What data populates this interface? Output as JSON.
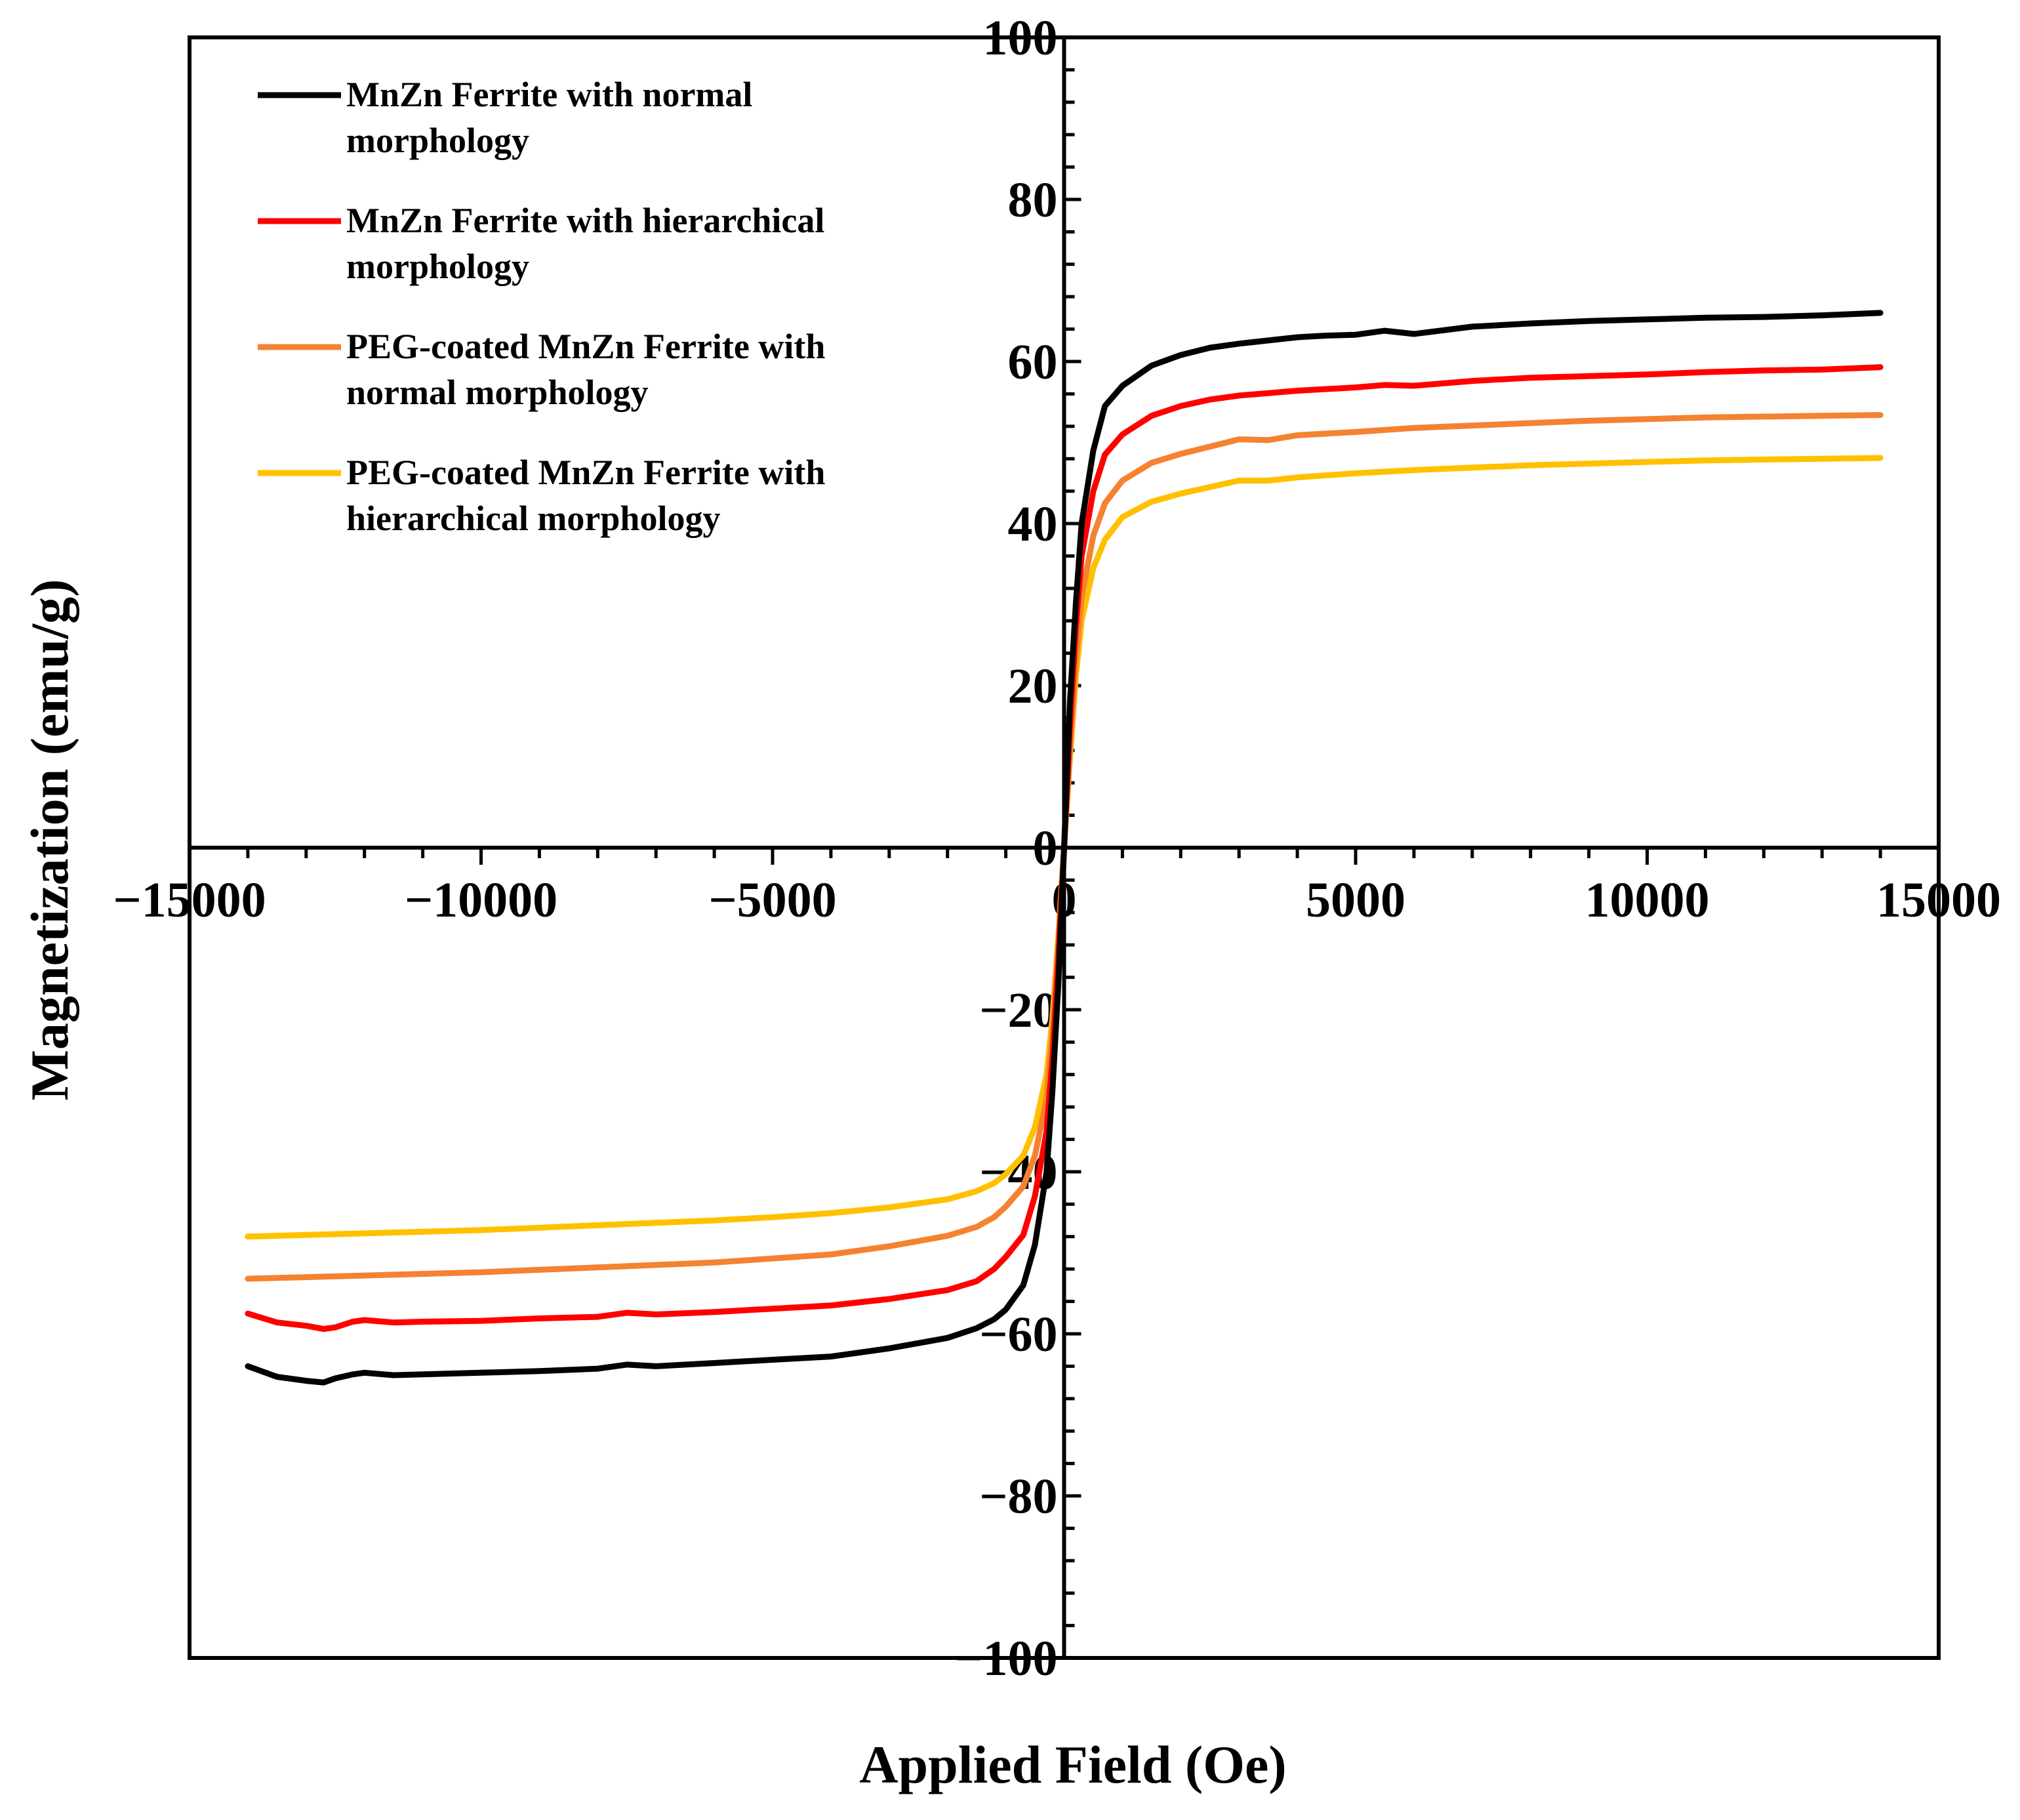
{
  "chart_data": {
    "type": "line",
    "title": "",
    "xlabel": "Applied Field (Oe)",
    "ylabel": "Magnetization (emu/g)",
    "xlim": [
      -15000,
      15000
    ],
    "ylim": [
      -100,
      100
    ],
    "x_ticks": [
      {
        "value": -15000,
        "label": "−15000"
      },
      {
        "value": -10000,
        "label": "−10000"
      },
      {
        "value": -5000,
        "label": "−5000"
      },
      {
        "value": 0,
        "label": "0"
      },
      {
        "value": 5000,
        "label": "5000"
      },
      {
        "value": 10000,
        "label": "10000"
      },
      {
        "value": 15000,
        "label": "15000"
      }
    ],
    "y_ticks": [
      {
        "value": 100,
        "label": "100"
      },
      {
        "value": 80,
        "label": "80"
      },
      {
        "value": 60,
        "label": "60"
      },
      {
        "value": 40,
        "label": "40"
      },
      {
        "value": 20,
        "label": "20"
      },
      {
        "value": 0,
        "label": "0"
      },
      {
        "value": -20,
        "label": "−20"
      },
      {
        "value": -40,
        "label": "−40"
      },
      {
        "value": -60,
        "label": "−60"
      },
      {
        "value": -80,
        "label": "−80"
      },
      {
        "value": -100,
        "label": "−100"
      }
    ],
    "grid": false,
    "legend_position": "top-left",
    "series": [
      {
        "name": "MnZn Ferrite with normal morphology",
        "legend_lines": [
          "MnZn Ferrite with normal",
          "morphology"
        ],
        "color": "#000000",
        "x": [
          -14000,
          -13500,
          -13000,
          -12700,
          -12500,
          -12200,
          -12000,
          -11500,
          -11000,
          -10000,
          -9000,
          -8000,
          -7500,
          -7000,
          -6000,
          -5000,
          -4000,
          -3000,
          -2000,
          -1500,
          -1200,
          -1000,
          -700,
          -500,
          -300,
          -200,
          -100,
          0,
          100,
          200,
          300,
          500,
          700,
          1000,
          1500,
          2000,
          2500,
          3000,
          4000,
          4500,
          5000,
          5500,
          6000,
          7000,
          8000,
          9000,
          10000,
          11000,
          12000,
          13000,
          14000
        ],
        "y": [
          -64.0,
          -65.3,
          -65.8,
          -66.0,
          -65.5,
          -65.0,
          -64.8,
          -65.1,
          -65.0,
          -64.8,
          -64.6,
          -64.3,
          -63.8,
          -64.0,
          -63.6,
          -63.2,
          -62.8,
          -61.8,
          -60.5,
          -59.3,
          -58.2,
          -57.0,
          -54.0,
          -49.0,
          -40.0,
          -30.0,
          -17.0,
          0.0,
          18.0,
          30.0,
          40.0,
          49.0,
          54.5,
          57.0,
          59.5,
          60.8,
          61.7,
          62.2,
          63.0,
          63.2,
          63.3,
          63.8,
          63.4,
          64.3,
          64.7,
          65.0,
          65.2,
          65.4,
          65.5,
          65.7,
          66.0
        ]
      },
      {
        "name": "MnZn Ferrite with hierarchical morphology",
        "legend_lines": [
          "MnZn Ferrite with hierarchical",
          "morphology"
        ],
        "color": "#ff0000",
        "x": [
          -14000,
          -13500,
          -13000,
          -12700,
          -12500,
          -12200,
          -12000,
          -11500,
          -11000,
          -10000,
          -9000,
          -8000,
          -7500,
          -7000,
          -6000,
          -5000,
          -4000,
          -3000,
          -2000,
          -1500,
          -1200,
          -1000,
          -700,
          -500,
          -300,
          -200,
          -100,
          0,
          100,
          200,
          300,
          500,
          700,
          1000,
          1500,
          2000,
          2500,
          3000,
          4000,
          5000,
          5500,
          6000,
          7000,
          8000,
          9000,
          10000,
          11000,
          12000,
          13000,
          14000
        ],
        "y": [
          -57.5,
          -58.6,
          -59.0,
          -59.4,
          -59.2,
          -58.5,
          -58.3,
          -58.6,
          -58.5,
          -58.4,
          -58.1,
          -57.9,
          -57.4,
          -57.6,
          -57.3,
          -56.9,
          -56.5,
          -55.7,
          -54.6,
          -53.5,
          -52.0,
          -50.5,
          -47.8,
          -43.0,
          -35.0,
          -26.0,
          -14.0,
          0.0,
          15.0,
          27.0,
          36.0,
          44.0,
          48.5,
          51.0,
          53.3,
          54.5,
          55.3,
          55.8,
          56.4,
          56.8,
          57.1,
          57.0,
          57.6,
          58.0,
          58.2,
          58.4,
          58.7,
          58.9,
          59.0,
          59.3
        ]
      },
      {
        "name": "PEG-coated MnZn Ferrite with normal morphology",
        "legend_lines": [
          "PEG-coated MnZn Ferrite with",
          "normal morphology"
        ],
        "color": "#f58231",
        "x": [
          -14000,
          -13000,
          -12000,
          -11000,
          -10000,
          -9000,
          -8000,
          -7000,
          -6000,
          -5000,
          -4000,
          -3000,
          -2000,
          -1500,
          -1200,
          -1000,
          -700,
          -500,
          -300,
          -200,
          -100,
          0,
          100,
          200,
          300,
          500,
          700,
          1000,
          1500,
          2000,
          2500,
          3000,
          3500,
          4000,
          5000,
          6000,
          7000,
          8000,
          9000,
          10000,
          11000,
          12000,
          13000,
          14000
        ],
        "y": [
          -53.2,
          -53.0,
          -52.8,
          -52.6,
          -52.4,
          -52.1,
          -51.8,
          -51.5,
          -51.2,
          -50.7,
          -50.2,
          -49.2,
          -47.9,
          -46.8,
          -45.6,
          -44.3,
          -41.8,
          -38.0,
          -31.0,
          -23.0,
          -12.0,
          0.0,
          12.0,
          23.0,
          31.0,
          38.5,
          42.5,
          45.3,
          47.5,
          48.6,
          49.5,
          50.4,
          50.3,
          50.9,
          51.3,
          51.8,
          52.1,
          52.4,
          52.7,
          52.9,
          53.1,
          53.2,
          53.3,
          53.4
        ]
      },
      {
        "name": "PEG-coated MnZn Ferrite with hierarchical morphology",
        "legend_lines": [
          "PEG-coated MnZn Ferrite with",
          "hierarchical morphology"
        ],
        "color": "#ffc000",
        "x": [
          -14000,
          -13000,
          -12000,
          -11000,
          -10000,
          -9000,
          -8000,
          -7000,
          -6000,
          -5000,
          -4000,
          -3000,
          -2000,
          -1500,
          -1200,
          -1000,
          -700,
          -500,
          -300,
          -200,
          -100,
          0,
          100,
          200,
          300,
          500,
          700,
          1000,
          1500,
          2000,
          2500,
          3000,
          3500,
          4000,
          5000,
          6000,
          7000,
          8000,
          9000,
          10000,
          11000,
          12000,
          13000,
          14000
        ],
        "y": [
          -48.0,
          -47.8,
          -47.6,
          -47.4,
          -47.2,
          -46.9,
          -46.6,
          -46.3,
          -46.0,
          -45.6,
          -45.1,
          -44.4,
          -43.4,
          -42.4,
          -41.4,
          -40.3,
          -38.0,
          -34.5,
          -28.0,
          -21.0,
          -11.0,
          0.0,
          11.0,
          21.0,
          28.0,
          34.5,
          38.0,
          40.8,
          42.7,
          43.7,
          44.5,
          45.3,
          45.3,
          45.7,
          46.2,
          46.6,
          46.9,
          47.2,
          47.4,
          47.6,
          47.8,
          47.9,
          48.0,
          48.1
        ]
      }
    ]
  }
}
